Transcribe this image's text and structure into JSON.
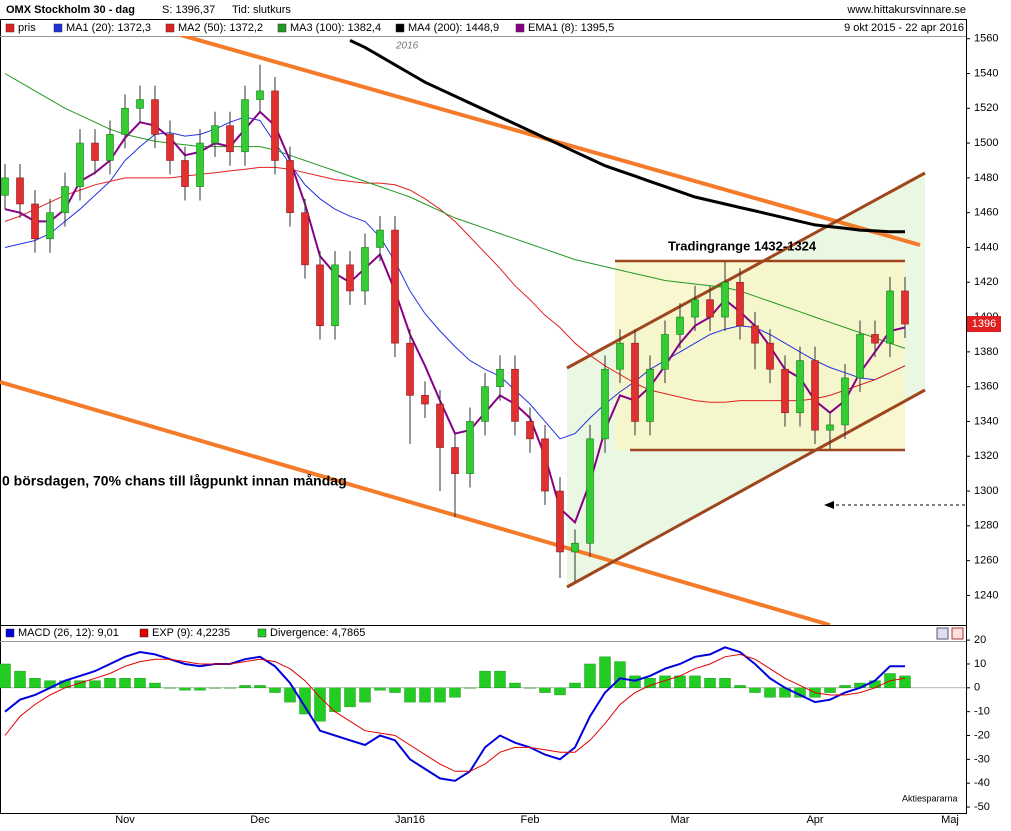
{
  "header": {
    "title": "OMX Stockholm 30 - dag",
    "price": "S: 1396,37",
    "time": "Tid: slutkurs",
    "site": "www.hittakursvinnare.se",
    "period": "9 okt 2015 - 22 apr 2016"
  },
  "chart_data": [
    {
      "type": "candlestick",
      "legend_label": "pris",
      "legend_color": "#e02020",
      "up_color": "#33cc33",
      "down_color": "#e03030",
      "categories": [
        null,
        null,
        null,
        null,
        null,
        null,
        null,
        null,
        "Nov",
        null,
        null,
        null,
        null,
        null,
        null,
        null,
        null,
        "Dec",
        null,
        null,
        null,
        null,
        null,
        null,
        null,
        null,
        null,
        "Jan16",
        null,
        null,
        null,
        null,
        null,
        null,
        null,
        "Feb",
        null,
        null,
        null,
        null,
        null,
        null,
        null,
        null,
        null,
        "Mar",
        null,
        null,
        null,
        null,
        null,
        null,
        null,
        null,
        "Apr",
        null,
        null,
        null,
        null,
        null,
        null,
        null,
        null,
        "Maj"
      ],
      "open": [
        1470,
        1480,
        1465,
        1445,
        1460,
        1475,
        1500,
        1490,
        1505,
        1520,
        1525,
        1505,
        1490,
        1475,
        1500,
        1510,
        1495,
        1525,
        1530,
        1490,
        1460,
        1430,
        1395,
        1430,
        1415,
        1440,
        1450,
        1385,
        1355,
        1350,
        1325,
        1310,
        1340,
        1360,
        1370,
        1340,
        1330,
        1300,
        1265,
        1270,
        1330,
        1370,
        1385,
        1340,
        1370,
        1390,
        1400,
        1410,
        1400,
        1420,
        1395,
        1385,
        1370,
        1345,
        1375,
        1335,
        1338,
        1365,
        1390,
        1385,
        1415,
        null,
        null,
        null
      ],
      "high": [
        1488,
        1488,
        1473,
        1468,
        1483,
        1508,
        1508,
        1513,
        1528,
        1533,
        1533,
        1513,
        1498,
        1508,
        1518,
        1518,
        1533,
        1545,
        1538,
        1498,
        1468,
        1438,
        1438,
        1438,
        1448,
        1458,
        1458,
        1393,
        1363,
        1358,
        1333,
        1348,
        1368,
        1378,
        1378,
        1348,
        1338,
        1308,
        1278,
        1338,
        1378,
        1393,
        1393,
        1378,
        1398,
        1408,
        1418,
        1418,
        1432,
        1428,
        1403,
        1393,
        1378,
        1383,
        1383,
        1346,
        1373,
        1398,
        1398,
        1423,
        1423,
        null,
        null,
        null
      ],
      "low": [
        1462,
        1457,
        1437,
        1437,
        1452,
        1467,
        1482,
        1482,
        1497,
        1512,
        1497,
        1482,
        1467,
        1467,
        1492,
        1487,
        1487,
        1517,
        1482,
        1452,
        1422,
        1387,
        1387,
        1407,
        1407,
        1432,
        1377,
        1327,
        1342,
        1300,
        1285,
        1302,
        1332,
        1352,
        1332,
        1322,
        1292,
        1250,
        1248,
        1262,
        1322,
        1362,
        1332,
        1332,
        1362,
        1382,
        1392,
        1392,
        1392,
        1387,
        1370,
        1362,
        1337,
        1337,
        1327,
        1324,
        1330,
        1357,
        1377,
        1377,
        1388,
        null,
        null,
        null
      ],
      "close": [
        1480,
        1465,
        1445,
        1460,
        1475,
        1500,
        1490,
        1505,
        1520,
        1525,
        1505,
        1490,
        1475,
        1500,
        1510,
        1495,
        1525,
        1530,
        1490,
        1460,
        1430,
        1395,
        1430,
        1415,
        1440,
        1450,
        1385,
        1355,
        1350,
        1325,
        1310,
        1340,
        1360,
        1370,
        1340,
        1330,
        1300,
        1265,
        1270,
        1330,
        1370,
        1385,
        1340,
        1370,
        1390,
        1400,
        1410,
        1400,
        1420,
        1395,
        1385,
        1370,
        1345,
        1375,
        1335,
        1338,
        1365,
        1390,
        1385,
        1415,
        1396,
        null,
        null,
        null
      ],
      "series": [
        {
          "name": "MA1 (20): 1372,3",
          "color": "#2233dd",
          "values": [
            1440,
            1442,
            1444,
            1448,
            1455,
            1462,
            1470,
            1478,
            1490,
            1498,
            1505,
            1506,
            1504,
            1505,
            1508,
            1512,
            1515,
            1513,
            1500,
            1488,
            1476,
            1468,
            1462,
            1458,
            1455,
            1446,
            1432,
            1415,
            1402,
            1392,
            1383,
            1375,
            1370,
            1366,
            1358,
            1350,
            1340,
            1330,
            1333,
            1342,
            1350,
            1357,
            1363,
            1370,
            1375,
            1380,
            1385,
            1390,
            1393,
            1395,
            1394,
            1390,
            1385,
            1380,
            1375,
            1371,
            1368,
            1365,
            1364,
            1368,
            1372,
            null,
            null,
            null
          ]
        },
        {
          "name": "MA2 (50): 1372,2",
          "color": "#e02020",
          "values": [
            1455,
            1458,
            1462,
            1466,
            1470,
            1473,
            1476,
            1478,
            1480,
            1480,
            1480,
            1480,
            1481,
            1482,
            1483,
            1484,
            1485,
            1486,
            1486,
            1485,
            1483,
            1481,
            1479,
            1478,
            1477,
            1477,
            1476,
            1473,
            1468,
            1462,
            1455,
            1446,
            1437,
            1428,
            1418,
            1410,
            1401,
            1394,
            1385,
            1378,
            1372,
            1367,
            1362,
            1358,
            1356,
            1354,
            1352,
            1351,
            1351,
            1352,
            1352,
            1352,
            1352,
            1352,
            1353,
            1355,
            1358,
            1361,
            1364,
            1368,
            1372,
            null,
            null,
            null
          ]
        },
        {
          "name": "MA3 (100): 1382,4",
          "color": "#229922",
          "values": [
            1540,
            1535,
            1530,
            1525,
            1520,
            1516,
            1512,
            1508,
            1505,
            1503,
            1501,
            1500,
            1499,
            1498,
            1498,
            1498,
            1498,
            1498,
            1496,
            1493,
            1490,
            1487,
            1484,
            1481,
            1478,
            1475,
            1472,
            1469,
            1465,
            1461,
            1457,
            1454,
            1451,
            1448,
            1445,
            1442,
            1439,
            1436,
            1433,
            1431,
            1429,
            1427,
            1425,
            1423,
            1421,
            1420,
            1419,
            1418,
            1417,
            1415,
            1412,
            1409,
            1406,
            1403,
            1400,
            1397,
            1394,
            1391,
            1388,
            1385,
            1382,
            null,
            null,
            null
          ]
        },
        {
          "name": "MA4 (200): 1448,9",
          "color": "#000000",
          "width": 3,
          "values": [
            null,
            null,
            null,
            null,
            null,
            null,
            null,
            null,
            null,
            null,
            null,
            null,
            null,
            null,
            null,
            null,
            null,
            null,
            null,
            null,
            null,
            null,
            null,
            1559,
            1555,
            1550,
            1545,
            1540,
            1535,
            1531,
            1527,
            1523,
            1519,
            1515,
            1511,
            1507,
            1503,
            1499,
            1495,
            1491,
            1487,
            1484,
            1481,
            1478,
            1475,
            1472,
            1469,
            1467,
            1465,
            1463,
            1461,
            1459,
            1457,
            1455,
            1453,
            1452,
            1451,
            1450,
            1449.5,
            1449,
            1449,
            null,
            null,
            null
          ]
        },
        {
          "name": "EMA1 (8): 1395,5",
          "color": "#880088",
          "width": 2,
          "values": [
            1462,
            1460,
            1455,
            1455,
            1462,
            1478,
            1483,
            1490,
            1503,
            1512,
            1510,
            1503,
            1493,
            1495,
            1500,
            1498,
            1508,
            1518,
            1510,
            1490,
            1465,
            1435,
            1425,
            1420,
            1428,
            1436,
            1415,
            1390,
            1372,
            1352,
            1333,
            1335,
            1345,
            1355,
            1350,
            1342,
            1320,
            1290,
            1282,
            1305,
            1335,
            1355,
            1352,
            1360,
            1372,
            1385,
            1395,
            1400,
            1410,
            1403,
            1395,
            1383,
            1370,
            1365,
            1352,
            1345,
            1352,
            1368,
            1380,
            1392,
            1394,
            null,
            null,
            null
          ]
        }
      ],
      "ylim": [
        1223,
        1565
      ],
      "yticks": [
        1240,
        1260,
        1280,
        1300,
        1320,
        1340,
        1360,
        1380,
        1400,
        1420,
        1440,
        1460,
        1480,
        1500,
        1520,
        1540,
        1560
      ],
      "last_label": "1396",
      "annotations": {
        "trading_range": "Tradingrange 1432-1324",
        "note": "0 börsdagen, 70% chans till lågpunkt innan måndag",
        "year": "2016"
      }
    },
    {
      "type": "macd",
      "series": [
        {
          "name": "MACD (26, 12): 9,01",
          "color": "#0000dd",
          "kind": "line",
          "values": [
            -10,
            -5,
            -3,
            0,
            3,
            5,
            7,
            10,
            13,
            15,
            14,
            12,
            10,
            9,
            10,
            10,
            12,
            13,
            9,
            2,
            -8,
            -18,
            -20,
            -22,
            -24,
            -20,
            -22,
            -30,
            -34,
            -38,
            -39,
            -35,
            -25,
            -20,
            -23,
            -25,
            -28,
            -30,
            -25,
            -12,
            -2,
            4,
            3,
            5,
            8,
            10,
            13,
            14,
            17,
            15,
            10,
            4,
            0,
            -3,
            -6,
            -5,
            -2,
            0,
            3,
            9,
            9,
            null,
            null,
            null
          ]
        },
        {
          "name": "EXP (9): 4,2235",
          "color": "#e00000",
          "kind": "line",
          "values": [
            -20,
            -12,
            -7,
            -3,
            0,
            2,
            4,
            6,
            9,
            11,
            12,
            12,
            11,
            10,
            10,
            10,
            11,
            12,
            11,
            8,
            3,
            -4,
            -10,
            -14,
            -18,
            -19,
            -20,
            -24,
            -28,
            -32,
            -35,
            -35,
            -32,
            -27,
            -25,
            -25,
            -26,
            -27,
            -27,
            -22,
            -15,
            -7,
            -2,
            1,
            3,
            5,
            8,
            10,
            13,
            14,
            12,
            8,
            4,
            1,
            -2,
            -3,
            -3,
            -2,
            0,
            3,
            4,
            null,
            null,
            null
          ]
        },
        {
          "name": "Divergence: 4,7865",
          "color": "#22cc22",
          "kind": "bar",
          "values": [
            10,
            7,
            4,
            3,
            3,
            3,
            3,
            4,
            4,
            4,
            2,
            0,
            -1,
            -1,
            0,
            0,
            1,
            1,
            -2,
            -6,
            -11,
            -14,
            -10,
            -8,
            -6,
            -1,
            -2,
            -6,
            -6,
            -6,
            -4,
            0,
            7,
            7,
            2,
            0,
            -2,
            -3,
            2,
            10,
            13,
            11,
            5,
            4,
            5,
            5,
            5,
            4,
            4,
            1,
            -2,
            -4,
            -4,
            -4,
            -4,
            -2,
            1,
            2,
            3,
            6,
            5,
            null,
            null,
            null
          ]
        }
      ],
      "ylim": [
        -52.5,
        25.5
      ],
      "yticks": [
        20,
        10,
        0,
        -10,
        -20,
        -30,
        -40,
        -50
      ],
      "credit": "Aktiespararna"
    }
  ]
}
